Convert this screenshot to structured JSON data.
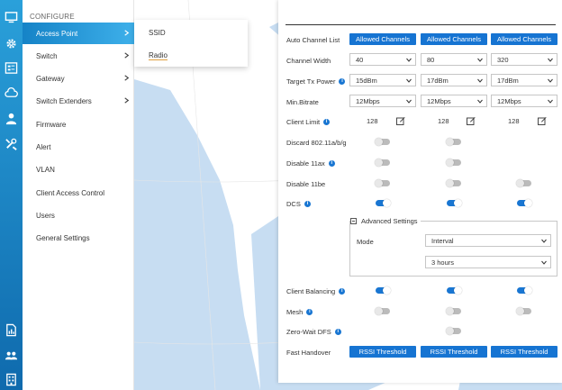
{
  "rail": {
    "icons": [
      "monitor-icon",
      "gear-icon",
      "list-icon",
      "cloud-icon",
      "users-config-icon",
      "tools-icon",
      "report-icon",
      "people-icon",
      "building-icon"
    ]
  },
  "menu": {
    "header": "CONFIGURE",
    "items": [
      {
        "label": "Access Point",
        "has_submenu": true,
        "active": true
      },
      {
        "label": "Switch",
        "has_submenu": true
      },
      {
        "label": "Gateway",
        "has_submenu": true
      },
      {
        "label": "Switch Extenders",
        "has_submenu": true
      },
      {
        "label": "Firmware"
      },
      {
        "label": "Alert"
      },
      {
        "label": "VLAN"
      },
      {
        "label": "Client Access Control"
      },
      {
        "label": "Users"
      },
      {
        "label": "General Settings"
      }
    ]
  },
  "submenu": {
    "items": [
      {
        "label": "SSID"
      },
      {
        "label": "Radio",
        "selected": true
      }
    ]
  },
  "radio": {
    "auto_channel_list": {
      "label": "Auto Channel List",
      "buttons": [
        "Allowed Channels",
        "Allowed Channels",
        "Allowed Channels"
      ]
    },
    "channel_width": {
      "label": "Channel Width",
      "values": [
        "40",
        "80",
        "320"
      ]
    },
    "target_tx_power": {
      "label": "Target Tx Power",
      "values": [
        "15dBm",
        "17dBm",
        "17dBm"
      ]
    },
    "min_bitrate": {
      "label": "Min.Bitrate",
      "values": [
        "12Mbps",
        "12Mbps",
        "12Mbps"
      ]
    },
    "client_limit": {
      "label": "Client Limit",
      "values": [
        "128",
        "128",
        "128"
      ]
    },
    "discard_11abg": {
      "label": "Discard 802.11a/b/g",
      "states": [
        false,
        false
      ]
    },
    "disable_11ax": {
      "label": "Disable 11ax",
      "states": [
        false,
        false
      ]
    },
    "disable_11be": {
      "label": "Disable 11be",
      "states": [
        false,
        false,
        false
      ]
    },
    "dcs": {
      "label": "DCS",
      "states": [
        true,
        true,
        true
      ]
    },
    "advanced": {
      "title": "Advanced Settings",
      "mode_label": "Mode",
      "mode_value": "Interval",
      "interval_value": "3 hours"
    },
    "client_balancing": {
      "label": "Client Balancing",
      "states": [
        true,
        true,
        true
      ]
    },
    "mesh": {
      "label": "Mesh",
      "states": [
        false,
        false,
        false
      ]
    },
    "zero_wait_dfs": {
      "label": "Zero-Wait DFS",
      "states": [
        false
      ]
    },
    "fast_handover": {
      "label": "Fast Handover",
      "buttons": [
        "RSSI Threshold",
        "RSSI Threshold",
        "RSSI Threshold"
      ]
    }
  },
  "colors": {
    "accent": "#1674d2",
    "rail_top": "#2aa0da",
    "rail_bottom": "#0f6aad",
    "map_sea": "#c7ddf2",
    "map_highlight": "#f2c98a"
  }
}
